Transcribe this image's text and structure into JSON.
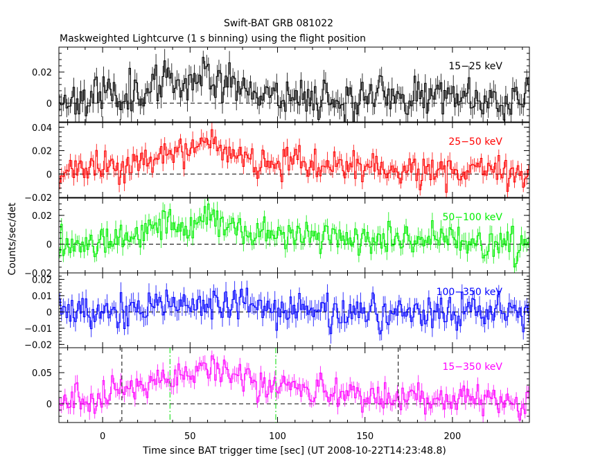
{
  "chart_data": {
    "type": "line",
    "title": "Swift-BAT GRB 081022",
    "subtitle": "Maskweighted Lightcurve (1 s binning) using the flight position",
    "xlabel": "Time since BAT trigger time [sec] (UT 2008-10-22T14:23:48.8)",
    "ylabel": "Counts/sec/det",
    "xlim": [
      -25,
      244
    ],
    "xticks": [
      0,
      50,
      100,
      150,
      200
    ],
    "xtick_labels": [
      "0",
      "50",
      "100",
      "150",
      "200"
    ],
    "panels": [
      {
        "band": "15-25 keV",
        "label": "15−25 keV",
        "color": "#000000",
        "ylim": [
          -0.012,
          0.036
        ],
        "yticks": [
          0,
          0.02
        ],
        "ytick_labels": [
          "0",
          "0.02"
        ],
        "shape": [
          [
            -25,
            0.002
          ],
          [
            20,
            0.008
          ],
          [
            45,
            0.014
          ],
          [
            60,
            0.02
          ],
          [
            75,
            0.012
          ],
          [
            95,
            0.006
          ],
          [
            140,
            0.003
          ],
          [
            200,
            0.005
          ],
          [
            244,
            0.002
          ]
        ],
        "noise": 0.0065,
        "seed": 11
      },
      {
        "band": "25-50 keV",
        "label": "25−50 keV",
        "color": "#ff0000",
        "ylim": [
          -0.02,
          0.044
        ],
        "yticks": [
          -0.02,
          0,
          0.02,
          0.04
        ],
        "ytick_labels": [
          "−0.02",
          "0",
          "0.02",
          "0.04"
        ],
        "shape": [
          [
            -25,
            0.0
          ],
          [
            0,
            0.005
          ],
          [
            25,
            0.012
          ],
          [
            45,
            0.016
          ],
          [
            60,
            0.026
          ],
          [
            75,
            0.016
          ],
          [
            100,
            0.01
          ],
          [
            140,
            0.006
          ],
          [
            200,
            0.003
          ],
          [
            244,
            0.001
          ]
        ],
        "noise": 0.0065,
        "seed": 23
      },
      {
        "band": "50-100 keV",
        "label": "50−100 keV",
        "color": "#00ee00",
        "ylim": [
          -0.02,
          0.032
        ],
        "yticks": [
          -0.02,
          0,
          0.02
        ],
        "ytick_labels": [
          "−0.02",
          "0",
          "0.02"
        ],
        "shape": [
          [
            -25,
            0.0
          ],
          [
            10,
            0.005
          ],
          [
            30,
            0.011
          ],
          [
            40,
            0.016
          ],
          [
            50,
            0.012
          ],
          [
            60,
            0.017
          ],
          [
            80,
            0.009
          ],
          [
            110,
            0.006
          ],
          [
            150,
            0.003
          ],
          [
            244,
            0.001
          ]
        ],
        "noise": 0.0055,
        "seed": 37
      },
      {
        "band": "100-350 keV",
        "label": "100−350 keV",
        "color": "#0000ff",
        "ylim": [
          -0.022,
          0.024
        ],
        "yticks": [
          -0.02,
          -0.01,
          0,
          0.01,
          0.02
        ],
        "ytick_labels": [
          "−0.02",
          "−0.01",
          "0",
          "0.01",
          "0.02"
        ],
        "shape": [
          [
            -25,
            0.0
          ],
          [
            30,
            0.002
          ],
          [
            60,
            0.005
          ],
          [
            90,
            0.003
          ],
          [
            140,
            0.0
          ],
          [
            244,
            0.0
          ]
        ],
        "noise": 0.0055,
        "seed": 53
      },
      {
        "band": "15-350 keV",
        "label": "15−350 keV",
        "color": "#ff00ff",
        "ylim": [
          -0.03,
          0.09
        ],
        "yticks": [
          0,
          0.05
        ],
        "ytick_labels": [
          "0",
          "0.05"
        ],
        "shape": [
          [
            -25,
            0.002
          ],
          [
            0,
            0.012
          ],
          [
            20,
            0.03
          ],
          [
            40,
            0.045
          ],
          [
            60,
            0.06
          ],
          [
            75,
            0.05
          ],
          [
            90,
            0.03
          ],
          [
            120,
            0.02
          ],
          [
            160,
            0.012
          ],
          [
            200,
            0.008
          ],
          [
            244,
            0.004
          ]
        ],
        "noise": 0.012,
        "seed": 71
      }
    ],
    "markers": [
      {
        "x": 11,
        "style": "dashed",
        "color": "#000000"
      },
      {
        "x": 38.5,
        "style": "dashdot",
        "color": "#00dd00"
      },
      {
        "x": 99,
        "style": "dashdot",
        "color": "#00dd00"
      },
      {
        "x": 169,
        "style": "dashed",
        "color": "#000000"
      }
    ]
  }
}
